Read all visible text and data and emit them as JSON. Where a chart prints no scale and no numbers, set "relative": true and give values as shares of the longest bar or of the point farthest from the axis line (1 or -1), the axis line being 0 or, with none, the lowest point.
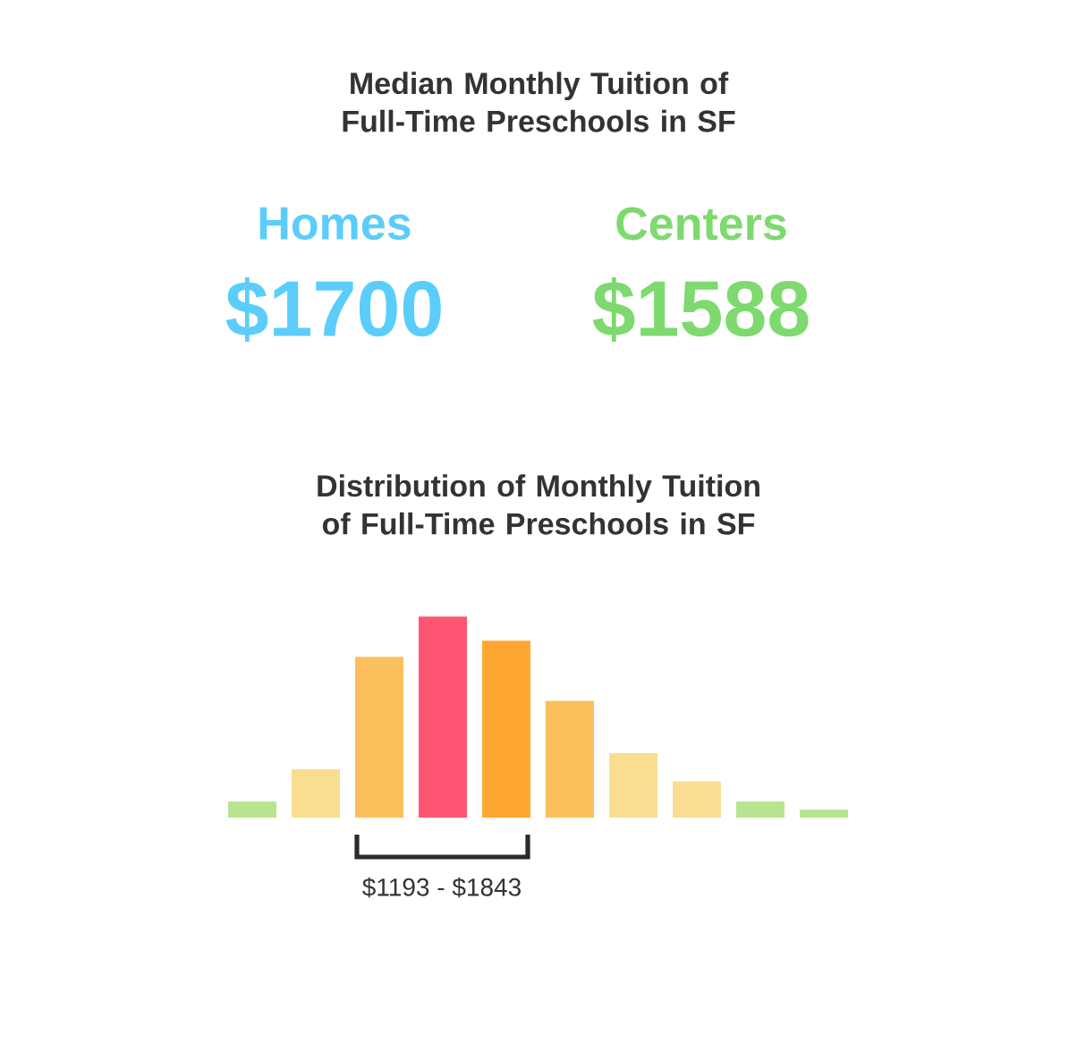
{
  "chart_data": [
    {
      "type": "other",
      "title": "Median Monthly Tuition of Full-Time Preschools in SF",
      "categories": [
        "Homes",
        "Centers"
      ],
      "value_labels": [
        "$1700",
        "$1588"
      ],
      "colors": [
        "#5bcdfb",
        "#7ed96e"
      ]
    },
    {
      "type": "bar",
      "title": "Distribution of Monthly Tuition of Full-Time Preschools in SF",
      "relative": true,
      "categories": [
        null,
        null,
        null,
        null,
        null,
        null,
        null,
        null,
        null,
        null
      ],
      "values": [
        0.08,
        0.24,
        0.8,
        1,
        0.88,
        0.58,
        0.32,
        0.18,
        0.08,
        0.04
      ],
      "colors": [
        "#b9e48f",
        "#fadd90",
        "#fbc05c",
        "#ff5572",
        "#ffa733",
        "#fbc05c",
        "#fadd90",
        "#fadd90",
        "#b9e48f",
        "#b9e48f"
      ],
      "annotations": [
        "$1193 - $1843"
      ]
    }
  ]
}
